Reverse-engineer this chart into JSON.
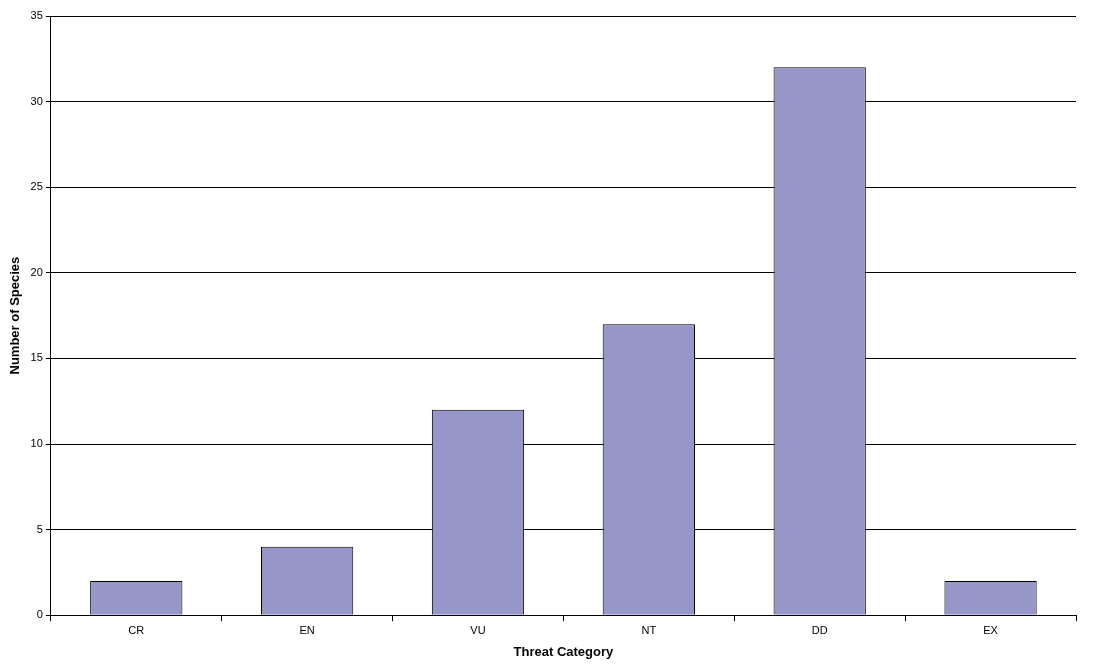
{
  "chart_data": {
    "type": "bar",
    "xlabel": "Threat Category",
    "ylabel": "Number of Species",
    "categories": [
      "CR",
      "EN",
      "VU",
      "NT",
      "DD",
      "EX"
    ],
    "values": [
      2,
      4,
      12,
      17,
      32,
      2
    ],
    "color": "#9696c8",
    "ylim": [
      0,
      35
    ],
    "yticks": [
      0,
      5,
      10,
      15,
      20,
      25,
      30,
      35
    ],
    "grid": "y",
    "legend": false
  }
}
